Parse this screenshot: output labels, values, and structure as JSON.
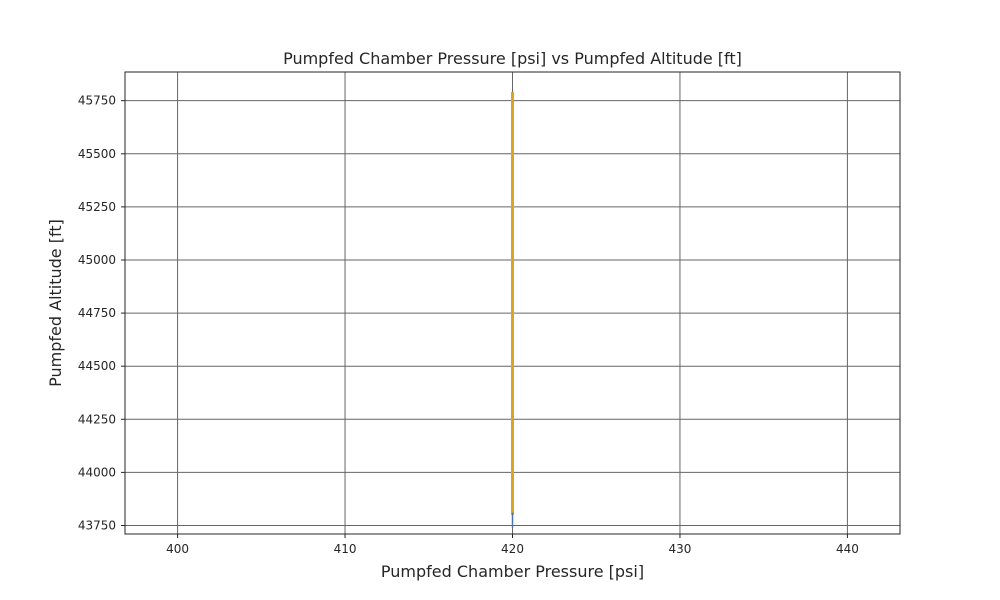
{
  "chart_data": {
    "type": "line",
    "title": "Pumpfed Chamber Pressure [psi] vs Pumpfed Altitude [ft]",
    "xlabel": "Pumpfed Chamber Pressure [psi]",
    "ylabel": "Pumpfed Altitude [ft]",
    "xlim": [
      396.86,
      443.14
    ],
    "ylim": [
      43710,
      45885
    ],
    "xticks": [
      400,
      410,
      420,
      430,
      440
    ],
    "yticks": [
      43750,
      44000,
      44250,
      44500,
      44750,
      45000,
      45250,
      45500,
      45750
    ],
    "grid": true,
    "legend": "none",
    "series": [
      {
        "color": "#DAA520",
        "x": [
          420,
          420
        ],
        "y": [
          43800,
          45790
        ]
      },
      {
        "color": "#4C72B0",
        "x": [
          420,
          420
        ],
        "y": [
          43740,
          43810
        ]
      }
    ]
  }
}
